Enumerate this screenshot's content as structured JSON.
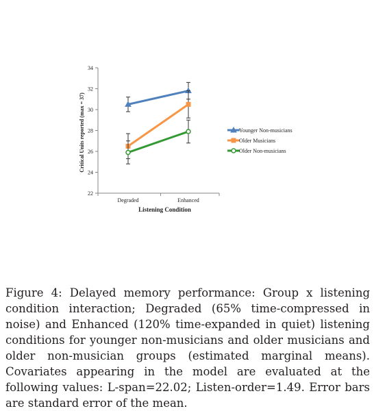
{
  "chart_data": {
    "type": "line",
    "categories": [
      "Degraded",
      "Enhanced"
    ],
    "xlabel": "Listening Condition",
    "ylabel": "Critical Units reported (max = 37)",
    "ylim": [
      22,
      34
    ],
    "yticks": [
      22,
      24,
      26,
      28,
      30,
      32,
      34
    ],
    "grid": false,
    "legend_position": "right",
    "error_bars": true,
    "series": [
      {
        "name": "Younger Non-musicians",
        "values": [
          30.5,
          31.8
        ],
        "errors": [
          0.7,
          0.8
        ],
        "color": "#4f81bd",
        "marker": "triangle"
      },
      {
        "name": "Older Musicians",
        "values": [
          26.5,
          30.5
        ],
        "errors": [
          1.2,
          1.3
        ],
        "color": "#f79646",
        "marker": "square"
      },
      {
        "name": "Older Non-musicians",
        "values": [
          25.9,
          27.9
        ],
        "errors": [
          1.1,
          1.1
        ],
        "color": "#339933",
        "marker": "circle"
      }
    ]
  },
  "caption": {
    "label": "Figure 4:",
    "text": " Delayed memory performance: Group x listening condition interaction; Degraded (65% time-compressed in noise) and Enhanced (120% time-expanded in quiet) listening conditions for younger non-musicians and older musicians and older non-musician groups (estimated marginal means). Covariates appearing in the model are evaluated at the following values: L-span=22.02; Listen-order=1.49. Error bars are standard error of the mean."
  }
}
